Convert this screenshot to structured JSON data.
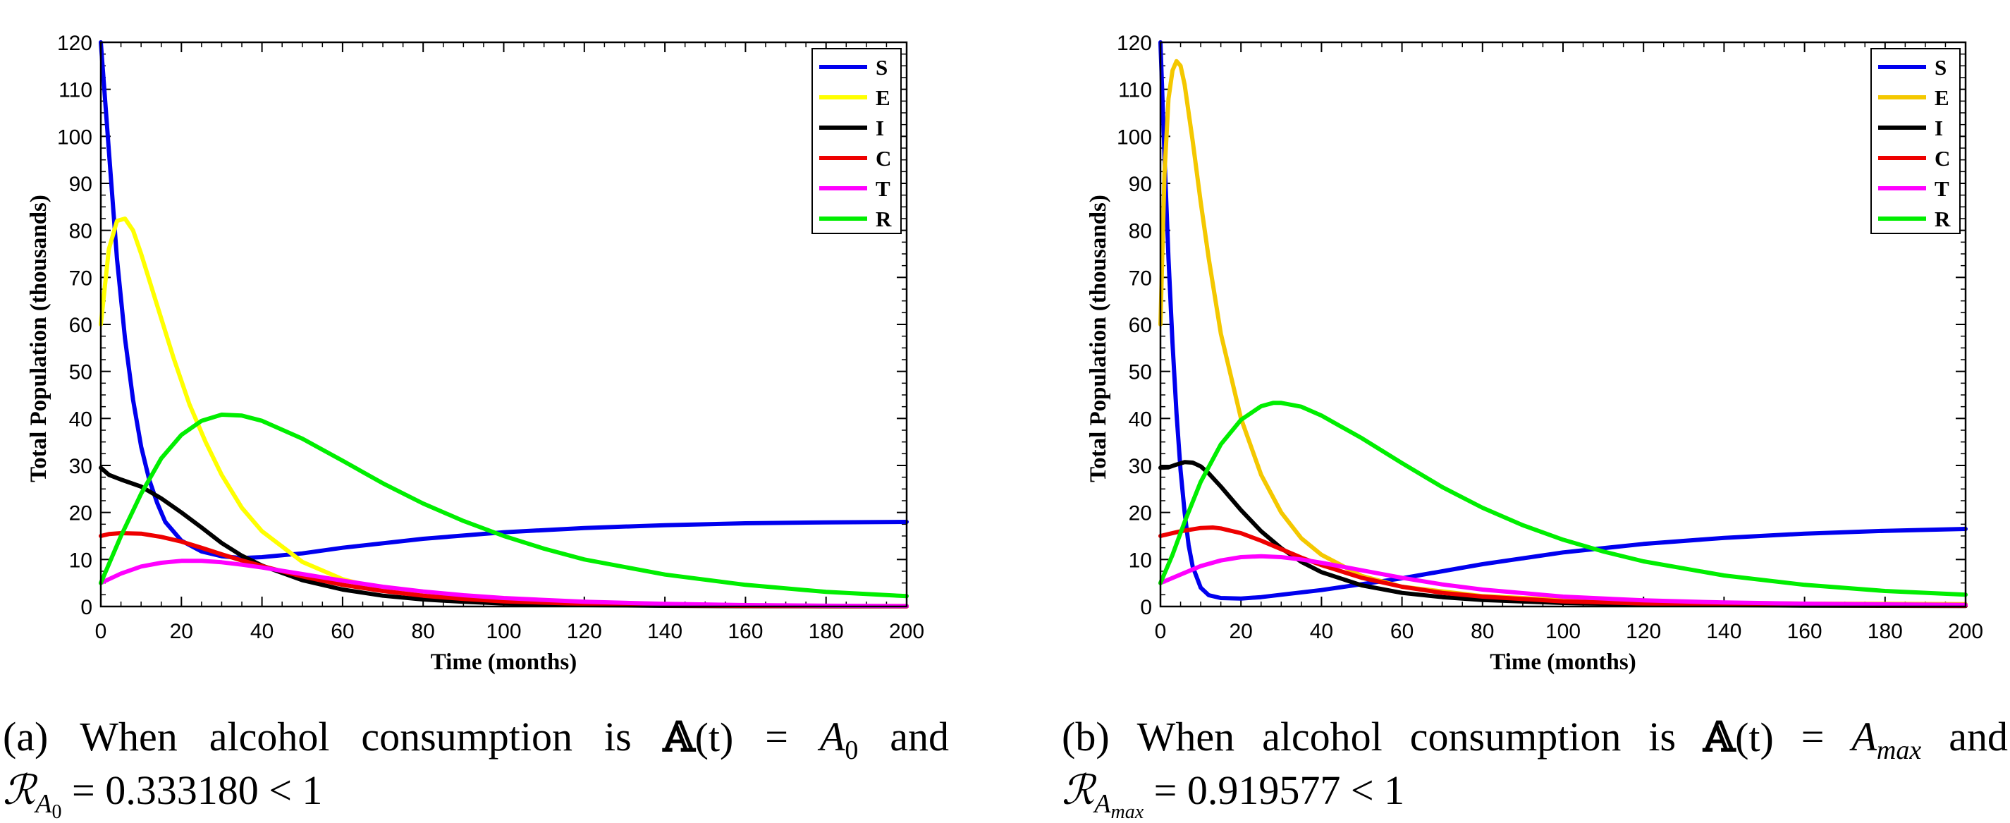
{
  "chart_data": [
    {
      "type": "line",
      "caption": {
        "label": "(a)",
        "text": "When alcohol consumption is",
        "a_symbol": "𝔸",
        "t": "(t)",
        "equals": "=",
        "value_base": "A",
        "value_sub": "0",
        "and": "and",
        "r_symbol": "ℛ",
        "r_sub": "A",
        "r_subsub": "0",
        "r_value": "= 0.333180 < 1"
      },
      "xlabel": "Time (months)",
      "ylabel": "Total Population (thousands)",
      "xlim": [
        0,
        200
      ],
      "ylim": [
        0,
        120
      ],
      "xticks": [
        0,
        20,
        40,
        60,
        80,
        100,
        120,
        140,
        160,
        180,
        200
      ],
      "yticks": [
        0,
        10,
        20,
        30,
        40,
        50,
        60,
        70,
        80,
        90,
        100,
        110,
        120
      ],
      "legend_position": "top-right",
      "grid": false,
      "series": [
        {
          "name": "S",
          "color": "#0000ee",
          "x": [
            0,
            2,
            4,
            6,
            8,
            10,
            12,
            14,
            16,
            20,
            25,
            30,
            35,
            40,
            50,
            60,
            80,
            100,
            120,
            140,
            160,
            180,
            200
          ],
          "y": [
            120,
            97,
            74,
            57,
            44,
            34,
            27,
            22,
            18,
            14,
            11.7,
            10.7,
            10.3,
            10.5,
            11.3,
            12.5,
            14.4,
            15.8,
            16.7,
            17.3,
            17.7,
            17.9,
            18
          ]
        },
        {
          "name": "E",
          "color": "#ffff00",
          "x": [
            0,
            2,
            4,
            6,
            8,
            10,
            14,
            18,
            22,
            26,
            30,
            35,
            40,
            50,
            60,
            70,
            80,
            90,
            100,
            120,
            140,
            160,
            180,
            200
          ],
          "y": [
            60,
            76,
            82,
            82.5,
            80,
            75,
            64,
            53,
            43,
            35,
            28,
            21,
            16,
            9.5,
            5.8,
            3.6,
            2.4,
            1.6,
            1.1,
            0.6,
            0.35,
            0.2,
            0.12,
            0.1
          ]
        },
        {
          "name": "I",
          "color": "#000000",
          "x": [
            0,
            2,
            5,
            10,
            15,
            20,
            25,
            30,
            35,
            40,
            50,
            60,
            70,
            80,
            90,
            100,
            120,
            140,
            160,
            180,
            200
          ],
          "y": [
            29.5,
            28,
            27,
            25.5,
            23,
            20,
            16.8,
            13.5,
            10.8,
            8.7,
            5.6,
            3.6,
            2.3,
            1.5,
            1,
            0.65,
            0.3,
            0.15,
            0.08,
            0.05,
            0.03
          ]
        },
        {
          "name": "C",
          "color": "#ee0000",
          "x": [
            0,
            2,
            5,
            10,
            15,
            20,
            25,
            30,
            35,
            40,
            50,
            60,
            70,
            80,
            90,
            100,
            120,
            140,
            160,
            180,
            200
          ],
          "y": [
            15,
            15.4,
            15.6,
            15.5,
            14.8,
            13.8,
            12.5,
            11.1,
            9.8,
            8.6,
            6.4,
            4.6,
            3.3,
            2.3,
            1.6,
            1.1,
            0.55,
            0.27,
            0.14,
            0.07,
            0.04
          ]
        },
        {
          "name": "T",
          "color": "#ff00ff",
          "x": [
            0,
            5,
            10,
            15,
            20,
            25,
            30,
            35,
            40,
            50,
            60,
            70,
            80,
            90,
            100,
            120,
            140,
            160,
            180,
            200
          ],
          "y": [
            5,
            7,
            8.5,
            9.3,
            9.7,
            9.7,
            9.4,
            8.9,
            8.3,
            6.9,
            5.5,
            4.2,
            3.2,
            2.4,
            1.8,
            1,
            0.55,
            0.3,
            0.17,
            0.1
          ]
        },
        {
          "name": "R",
          "color": "#00ee00",
          "x": [
            0,
            5,
            10,
            15,
            20,
            25,
            30,
            35,
            40,
            50,
            60,
            70,
            80,
            90,
            100,
            110,
            120,
            140,
            160,
            180,
            200
          ],
          "y": [
            5,
            15,
            24,
            31.5,
            36.5,
            39.5,
            40.8,
            40.6,
            39.5,
            35.7,
            31,
            26.2,
            21.9,
            18.2,
            15,
            12.3,
            10,
            6.8,
            4.6,
            3.1,
            2.2
          ]
        }
      ]
    },
    {
      "type": "line",
      "caption": {
        "label": "(b)",
        "text": "When alcohol consumption is",
        "a_symbol": "𝔸",
        "t": "(t)",
        "equals": "=",
        "value_base": "A",
        "value_sub": "max",
        "and": "and",
        "r_symbol": "ℛ",
        "r_sub": "A",
        "r_subsub": "max",
        "r_value": "= 0.919577 < 1"
      },
      "xlabel": "Time (months)",
      "ylabel": "Total Population (thousands)",
      "xlim": [
        0,
        200
      ],
      "ylim": [
        0,
        120
      ],
      "xticks": [
        0,
        20,
        40,
        60,
        80,
        100,
        120,
        140,
        160,
        180,
        200
      ],
      "yticks": [
        0,
        10,
        20,
        30,
        40,
        50,
        60,
        70,
        80,
        90,
        100,
        110,
        120
      ],
      "legend_position": "top-right",
      "grid": false,
      "series": [
        {
          "name": "S",
          "color": "#0000ee",
          "x": [
            0,
            1,
            2,
            3,
            4,
            5,
            6,
            7,
            8,
            10,
            12,
            15,
            20,
            25,
            30,
            40,
            60,
            80,
            100,
            120,
            140,
            160,
            180,
            200
          ],
          "y": [
            120,
            96,
            74,
            56,
            41,
            29,
            20,
            13,
            8.5,
            4,
            2.4,
            1.8,
            1.7,
            2,
            2.5,
            3.5,
            6,
            9,
            11.5,
            13.3,
            14.6,
            15.5,
            16.1,
            16.5
          ]
        },
        {
          "name": "E",
          "color": "#f4c800",
          "x": [
            0,
            1,
            2,
            3,
            4,
            5,
            6,
            8,
            10,
            12,
            15,
            20,
            25,
            30,
            35,
            40,
            50,
            60,
            80,
            100,
            120,
            140,
            160,
            180,
            200
          ],
          "y": [
            60,
            92,
            108,
            114,
            116,
            115,
            111,
            99,
            86,
            74,
            58,
            40,
            28,
            20,
            14.5,
            11,
            6.5,
            4.2,
            2.2,
            1.4,
            1,
            0.8,
            0.6,
            0.55,
            0.5
          ]
        },
        {
          "name": "I",
          "color": "#000000",
          "x": [
            0,
            2,
            4,
            6,
            8,
            10,
            12,
            15,
            20,
            25,
            30,
            35,
            40,
            50,
            60,
            70,
            80,
            100,
            120,
            140,
            160,
            180,
            200
          ],
          "y": [
            29.5,
            29.6,
            30.2,
            30.7,
            30.6,
            29.8,
            28.3,
            25.5,
            20.5,
            16,
            12.4,
            9.5,
            7.3,
            4.5,
            2.9,
            2,
            1.4,
            0.75,
            0.45,
            0.3,
            0.2,
            0.15,
            0.1
          ]
        },
        {
          "name": "C",
          "color": "#ee0000",
          "x": [
            0,
            2,
            5,
            10,
            13,
            15,
            20,
            25,
            30,
            35,
            40,
            50,
            60,
            70,
            80,
            100,
            120,
            140,
            160,
            180,
            200
          ],
          "y": [
            15,
            15.4,
            16,
            16.7,
            16.8,
            16.6,
            15.6,
            14,
            12.2,
            10.4,
            8.8,
            6.1,
            4.2,
            2.9,
            2.1,
            1.1,
            0.65,
            0.4,
            0.3,
            0.22,
            0.18
          ]
        },
        {
          "name": "T",
          "color": "#ff00ff",
          "x": [
            0,
            5,
            10,
            15,
            20,
            25,
            30,
            35,
            40,
            50,
            60,
            70,
            80,
            100,
            120,
            140,
            160,
            180,
            200
          ],
          "y": [
            5,
            6.8,
            8.6,
            9.8,
            10.5,
            10.7,
            10.5,
            10,
            9.3,
            7.7,
            6.1,
            4.7,
            3.6,
            2.1,
            1.3,
            0.85,
            0.6,
            0.45,
            0.35
          ]
        },
        {
          "name": "R",
          "color": "#00ee00",
          "x": [
            0,
            3,
            6,
            10,
            15,
            20,
            25,
            28,
            30,
            35,
            40,
            50,
            60,
            70,
            80,
            90,
            100,
            110,
            120,
            140,
            160,
            180,
            200
          ],
          "y": [
            5,
            11,
            18,
            26.5,
            34.5,
            39.7,
            42.6,
            43.3,
            43.3,
            42.5,
            40.6,
            35.8,
            30.5,
            25.4,
            21,
            17.3,
            14.2,
            11.7,
            9.6,
            6.6,
            4.6,
            3.3,
            2.5
          ]
        }
      ]
    }
  ]
}
